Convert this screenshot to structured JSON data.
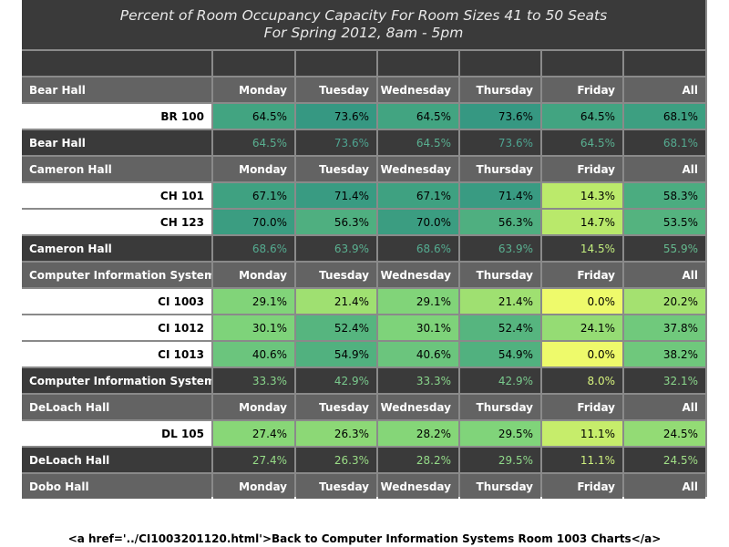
{
  "title": {
    "line1": "Percent of Room Occupancy Capacity For Room Sizes 41 to 50 Seats",
    "line2": "For Spring 2012, 8am - 5pm"
  },
  "days": [
    "Monday",
    "Tuesday",
    "Wednesday",
    "Thursday",
    "Friday",
    "All"
  ],
  "buildings": [
    {
      "name": "Bear Hall",
      "rooms": [
        {
          "name": "BR 100",
          "values": [
            "64.5%",
            "73.6%",
            "64.5%",
            "73.6%",
            "64.5%",
            "68.1%"
          ]
        }
      ],
      "summary": [
        "64.5%",
        "73.6%",
        "64.5%",
        "73.6%",
        "64.5%",
        "68.1%"
      ]
    },
    {
      "name": "Cameron Hall",
      "rooms": [
        {
          "name": "CH 101",
          "values": [
            "67.1%",
            "71.4%",
            "67.1%",
            "71.4%",
            "14.3%",
            "58.3%"
          ]
        },
        {
          "name": "CH 123",
          "values": [
            "70.0%",
            "56.3%",
            "70.0%",
            "56.3%",
            "14.7%",
            "53.5%"
          ]
        }
      ],
      "summary": [
        "68.6%",
        "63.9%",
        "68.6%",
        "63.9%",
        "14.5%",
        "55.9%"
      ]
    },
    {
      "name": "Computer Information Systems",
      "rooms": [
        {
          "name": "CI 1003",
          "values": [
            "29.1%",
            "21.4%",
            "29.1%",
            "21.4%",
            "0.0%",
            "20.2%"
          ]
        },
        {
          "name": "CI 1012",
          "values": [
            "30.1%",
            "52.4%",
            "30.1%",
            "52.4%",
            "24.1%",
            "37.8%"
          ]
        },
        {
          "name": "CI 1013",
          "values": [
            "40.6%",
            "54.9%",
            "40.6%",
            "54.9%",
            "0.0%",
            "38.2%"
          ]
        }
      ],
      "summary": [
        "33.3%",
        "42.9%",
        "33.3%",
        "42.9%",
        "8.0%",
        "32.1%"
      ]
    },
    {
      "name": "DeLoach Hall",
      "rooms": [
        {
          "name": "DL 105",
          "values": [
            "27.4%",
            "26.3%",
            "28.2%",
            "29.5%",
            "11.1%",
            "24.5%"
          ]
        }
      ],
      "summary": [
        "27.4%",
        "26.3%",
        "28.2%",
        "29.5%",
        "11.1%",
        "24.5%"
      ]
    },
    {
      "name": "Dobo Hall",
      "rooms": [],
      "summary": null
    }
  ],
  "colors": {
    "header_bg": "#636363",
    "summary_bg": "#3a3a3a",
    "title_bg": "#3a3a3a",
    "grid_line": "#8a8a8a"
  },
  "footer_text": "<a href='../CI1003201120.html'>Back to Computer Information Systems Room 1003 Charts</a>"
}
